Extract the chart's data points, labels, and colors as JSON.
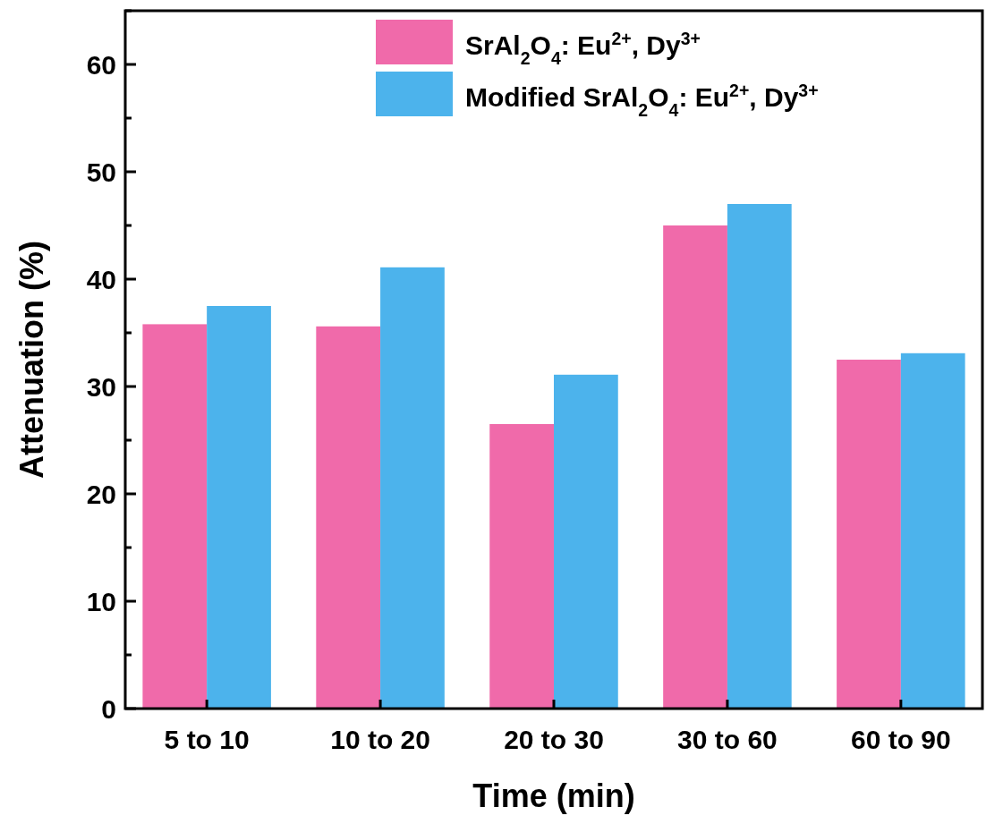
{
  "chart_data": {
    "type": "bar",
    "xlabel": "Time (min)",
    "ylabel": "Attenuation (%)",
    "categories": [
      "5 to 10",
      "10 to 20",
      "20 to 30",
      "30 to 60",
      "60 to 90"
    ],
    "series": [
      {
        "name": "SrAl$_{2}$O$_{4}$: Eu$^{2+}$, Dy$^{3+}$",
        "color": "#f06aaa",
        "values": [
          35.8,
          35.6,
          26.5,
          45.0,
          32.5
        ]
      },
      {
        "name": "Modified SrAl$_{2}$O$_{4}$: Eu$^{2+}$, Dy$^{3+}$",
        "color": "#4cb3ec",
        "values": [
          37.5,
          41.1,
          31.1,
          47.0,
          33.1
        ]
      }
    ],
    "ylim": [
      0,
      65
    ],
    "yticks": [
      0,
      {
        "value": 5,
        "label": null
      },
      10,
      {
        "value": 15,
        "label": null
      },
      20,
      {
        "value": 25,
        "label": null
      },
      30,
      {
        "value": 35,
        "label": null
      },
      40,
      {
        "value": 45,
        "label": null
      },
      50,
      {
        "value": 55,
        "label": null
      },
      60,
      {
        "value": 65,
        "label": null
      }
    ],
    "legend": "top right",
    "grid": false
  }
}
